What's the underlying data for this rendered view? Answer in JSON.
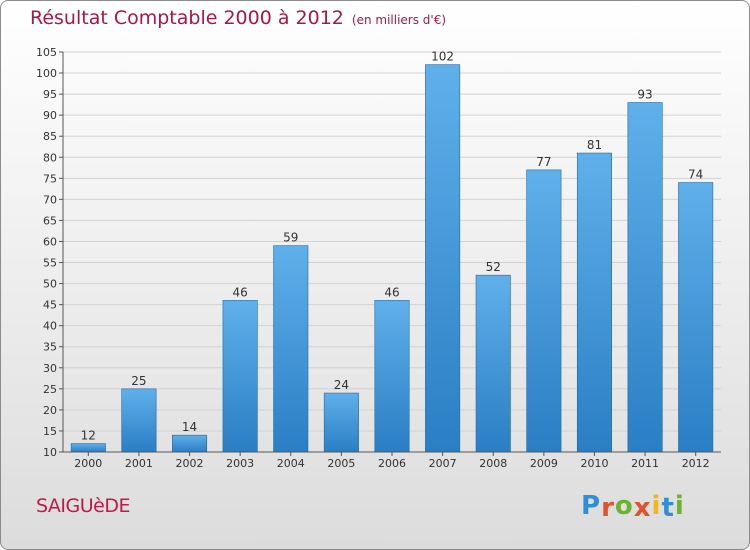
{
  "title": {
    "main": "Résultat Comptable 2000 à 2012",
    "unit": "(en milliers d'€)"
  },
  "commune": "SAIGUèDE",
  "logo": {
    "text": "Proxiti",
    "letters": [
      "P",
      "r",
      "o",
      "x",
      "i",
      "t",
      "i"
    ],
    "colors": [
      "#2f8fd8",
      "#e0522a",
      "#6ab42d",
      "#e0522a",
      "#f2b51a",
      "#2f8fd8",
      "#6ab42d"
    ]
  },
  "colors": {
    "bar_top": "#5fb0ea",
    "bar_bottom": "#2a7ec4",
    "title": "#a3194a"
  },
  "chart_data": {
    "type": "bar",
    "title": "Résultat Comptable 2000 à 2012",
    "subtitle": "(en milliers d'€)",
    "categories": [
      "2000",
      "2001",
      "2002",
      "2003",
      "2004",
      "2005",
      "2006",
      "2007",
      "2008",
      "2009",
      "2010",
      "2011",
      "2012"
    ],
    "values": [
      12,
      25,
      14,
      46,
      59,
      24,
      46,
      102,
      52,
      77,
      81,
      93,
      74
    ],
    "ylim": [
      10,
      105
    ],
    "yticks": [
      10,
      15,
      20,
      25,
      30,
      35,
      40,
      45,
      50,
      55,
      60,
      65,
      70,
      75,
      80,
      85,
      90,
      95,
      100,
      105
    ],
    "grid": true,
    "data_labels": true
  }
}
